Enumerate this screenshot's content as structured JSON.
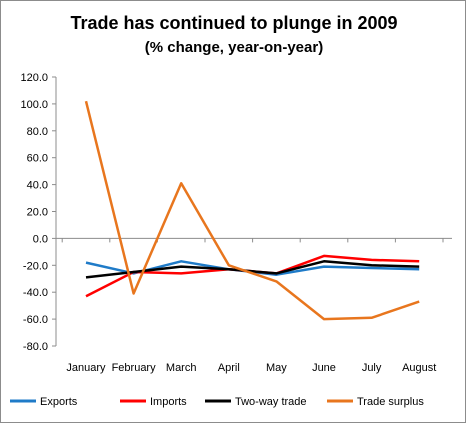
{
  "chart_data": {
    "type": "line",
    "title": "Trade has continued  to plunge in 2009",
    "subtitle": "(% change, year-on-year)",
    "xlabel": "",
    "ylabel": "",
    "categories": [
      "January",
      "February",
      "March",
      "April",
      "May",
      "June",
      "July",
      "August"
    ],
    "ylim": [
      -80,
      120
    ],
    "ytick_labels": [
      "120.0",
      "100.0",
      "80.0",
      "60.0",
      "40.0",
      "20.0",
      "0.0",
      "-20.0",
      "-40.0",
      "-60.0",
      "-80.0"
    ],
    "grid": false,
    "legend": "bottom",
    "series": [
      {
        "name": "Exports",
        "color": "#1f7bc8",
        "values": [
          -18,
          -26,
          -17,
          -23,
          -27,
          -21,
          -22,
          -23
        ]
      },
      {
        "name": "Imports",
        "color": "#ff0000",
        "values": [
          -43,
          -25,
          -26,
          -23,
          -26,
          -13,
          -16,
          -17
        ]
      },
      {
        "name": "Two-way trade",
        "color": "#000000",
        "values": [
          -29,
          -25,
          -21,
          -23,
          -26,
          -17,
          -20,
          -21
        ]
      },
      {
        "name": "Trade surplus",
        "color": "#e8761e",
        "values": [
          102,
          -41,
          41,
          -20,
          -32,
          -60,
          -59,
          -47
        ]
      }
    ]
  }
}
